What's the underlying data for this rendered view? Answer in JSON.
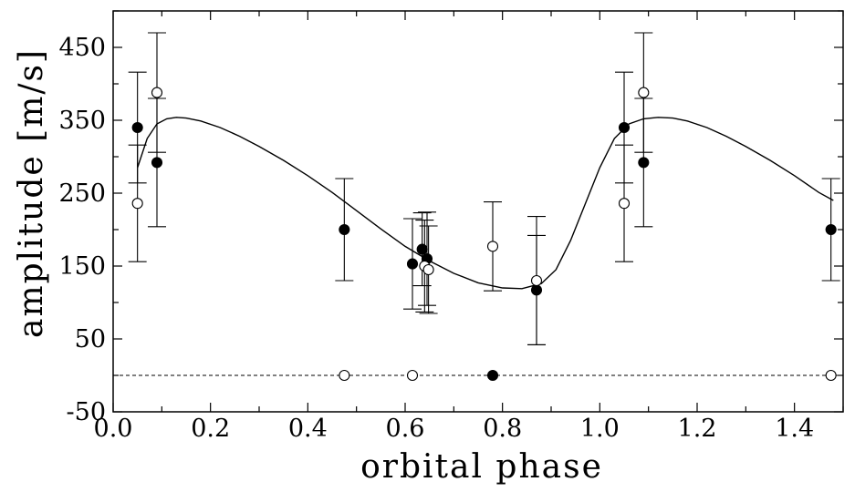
{
  "chart_data": {
    "type": "scatter",
    "xlabel": "orbital phase",
    "ylabel": "amplitude [m/s]",
    "xlim": [
      0.0,
      1.5
    ],
    "ylim": [
      -50,
      500
    ],
    "x_ticks": [
      "0.0",
      "0.2",
      "0.4",
      "0.6",
      "0.8",
      "1.0",
      "1.2",
      "1.4"
    ],
    "x_tick_values": [
      0.0,
      0.2,
      0.4,
      0.6,
      0.8,
      1.0,
      1.2,
      1.4
    ],
    "y_ticks": [
      "-50",
      "50",
      "150",
      "250",
      "350",
      "450"
    ],
    "y_tick_values": [
      -50,
      50,
      150,
      250,
      350,
      450
    ],
    "grid": false,
    "baseline": {
      "y": 0,
      "style": "dashed"
    },
    "series": [
      {
        "marker": "filled-circle",
        "points": [
          {
            "x": 0.05,
            "y": 340,
            "err": 76
          },
          {
            "x": 0.09,
            "y": 292,
            "err": 88
          },
          {
            "x": 0.475,
            "y": 200,
            "err": 70
          },
          {
            "x": 0.615,
            "y": 153,
            "err": 62
          },
          {
            "x": 0.635,
            "y": 173,
            "err": 50
          },
          {
            "x": 0.645,
            "y": 160,
            "err": 64
          },
          {
            "x": 0.78,
            "y": 0,
            "err": 0
          },
          {
            "x": 0.87,
            "y": 117,
            "err": 75
          },
          {
            "x": 1.05,
            "y": 340,
            "err": 76
          },
          {
            "x": 1.09,
            "y": 292,
            "err": 88
          },
          {
            "x": 1.475,
            "y": 200,
            "err": 70
          }
        ]
      },
      {
        "marker": "open-circle",
        "points": [
          {
            "x": 0.05,
            "y": 236,
            "err": 80
          },
          {
            "x": 0.09,
            "y": 388,
            "err": 82
          },
          {
            "x": 0.475,
            "y": 0,
            "err": 0
          },
          {
            "x": 0.615,
            "y": 0,
            "err": 0
          },
          {
            "x": 0.64,
            "y": 150,
            "err": 63
          },
          {
            "x": 0.648,
            "y": 145,
            "err": 60
          },
          {
            "x": 0.78,
            "y": 177,
            "err": 61
          },
          {
            "x": 0.87,
            "y": 130,
            "err": 88
          },
          {
            "x": 1.05,
            "y": 236,
            "err": 80
          },
          {
            "x": 1.09,
            "y": 388,
            "err": 82
          },
          {
            "x": 1.475,
            "y": 0,
            "err": 0
          }
        ]
      },
      {
        "type": "line",
        "marker": "none",
        "x": [
          0.05,
          0.07,
          0.09,
          0.11,
          0.13,
          0.15,
          0.18,
          0.22,
          0.26,
          0.3,
          0.35,
          0.4,
          0.45,
          0.5,
          0.55,
          0.6,
          0.65,
          0.7,
          0.75,
          0.8,
          0.84,
          0.88,
          0.91,
          0.94,
          0.97,
          1.0,
          1.03,
          1.06,
          1.09,
          1.12,
          1.15,
          1.18,
          1.22,
          1.26,
          1.3,
          1.35,
          1.4,
          1.45,
          1.48
        ],
        "y": [
          285,
          325,
          345,
          352,
          354,
          353,
          349,
          340,
          328,
          314,
          295,
          274,
          251,
          226,
          201,
          177,
          157,
          140,
          127,
          120,
          119,
          126,
          145,
          185,
          235,
          285,
          325,
          345,
          352,
          354,
          353,
          349,
          340,
          328,
          314,
          295,
          274,
          251,
          240
        ]
      }
    ]
  }
}
